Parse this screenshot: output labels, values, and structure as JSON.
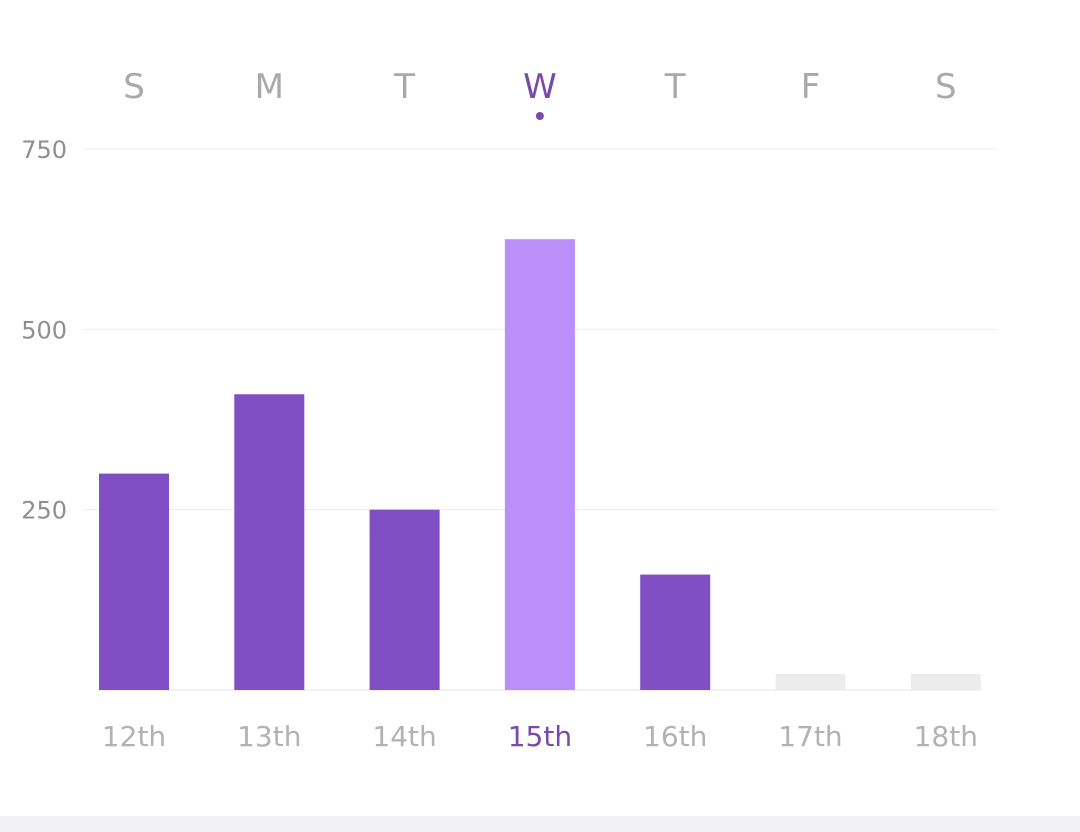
{
  "chart_data": {
    "type": "bar",
    "days": [
      "S",
      "M",
      "T",
      "W",
      "T",
      "F",
      "S"
    ],
    "categories": [
      "12th",
      "13th",
      "14th",
      "15th",
      "16th",
      "17th",
      "18th"
    ],
    "values": [
      300,
      410,
      250,
      625,
      160,
      null,
      null
    ],
    "selected_index": 3,
    "y_ticks": [
      250,
      500,
      750
    ],
    "ylim": [
      0,
      750
    ],
    "grid": true,
    "colors": {
      "bar": "#7f4fc3",
      "bar_active": "#bb8ff8",
      "bar_empty": "#ececec",
      "active_text": "#7a4aa8",
      "inactive_text": "#b2b2b2"
    }
  }
}
